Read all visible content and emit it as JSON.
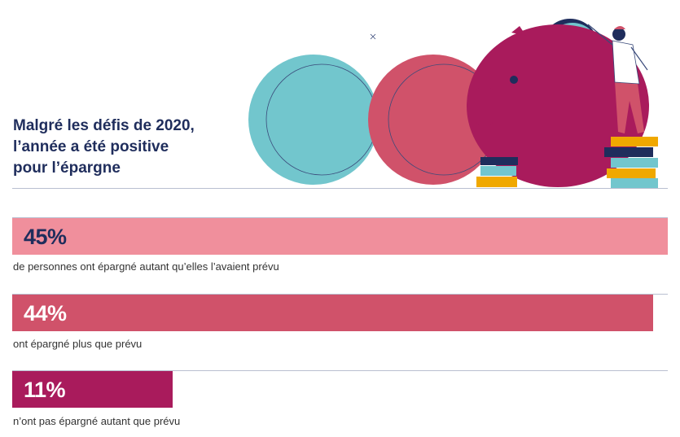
{
  "header": {
    "title_lines": [
      "Malgré les défis de 2020,",
      "l’année a été positive",
      "pour l’épargne"
    ]
  },
  "colors": {
    "navy": "#1f2d5c",
    "bar1": "#f08f9c",
    "bar2": "#d0526a",
    "bar3": "#a91b5c",
    "teal": "#72c6cd",
    "gold": "#f0a800"
  },
  "chart_data": {
    "type": "bar",
    "orientation": "horizontal",
    "title": "Malgré les défis de 2020, l’année a été positive pour l’épargne",
    "categories": [
      "de personnes ont épargné autant qu’elles l’avaient prévu",
      "ont épargné plus que prévu",
      "n’ont pas épargné autant que prévu"
    ],
    "values": [
      45,
      44,
      11
    ],
    "labels": [
      "45%",
      "44%",
      "11%"
    ],
    "unit": "%",
    "xlim": [
      0,
      45
    ],
    "grid": false
  }
}
